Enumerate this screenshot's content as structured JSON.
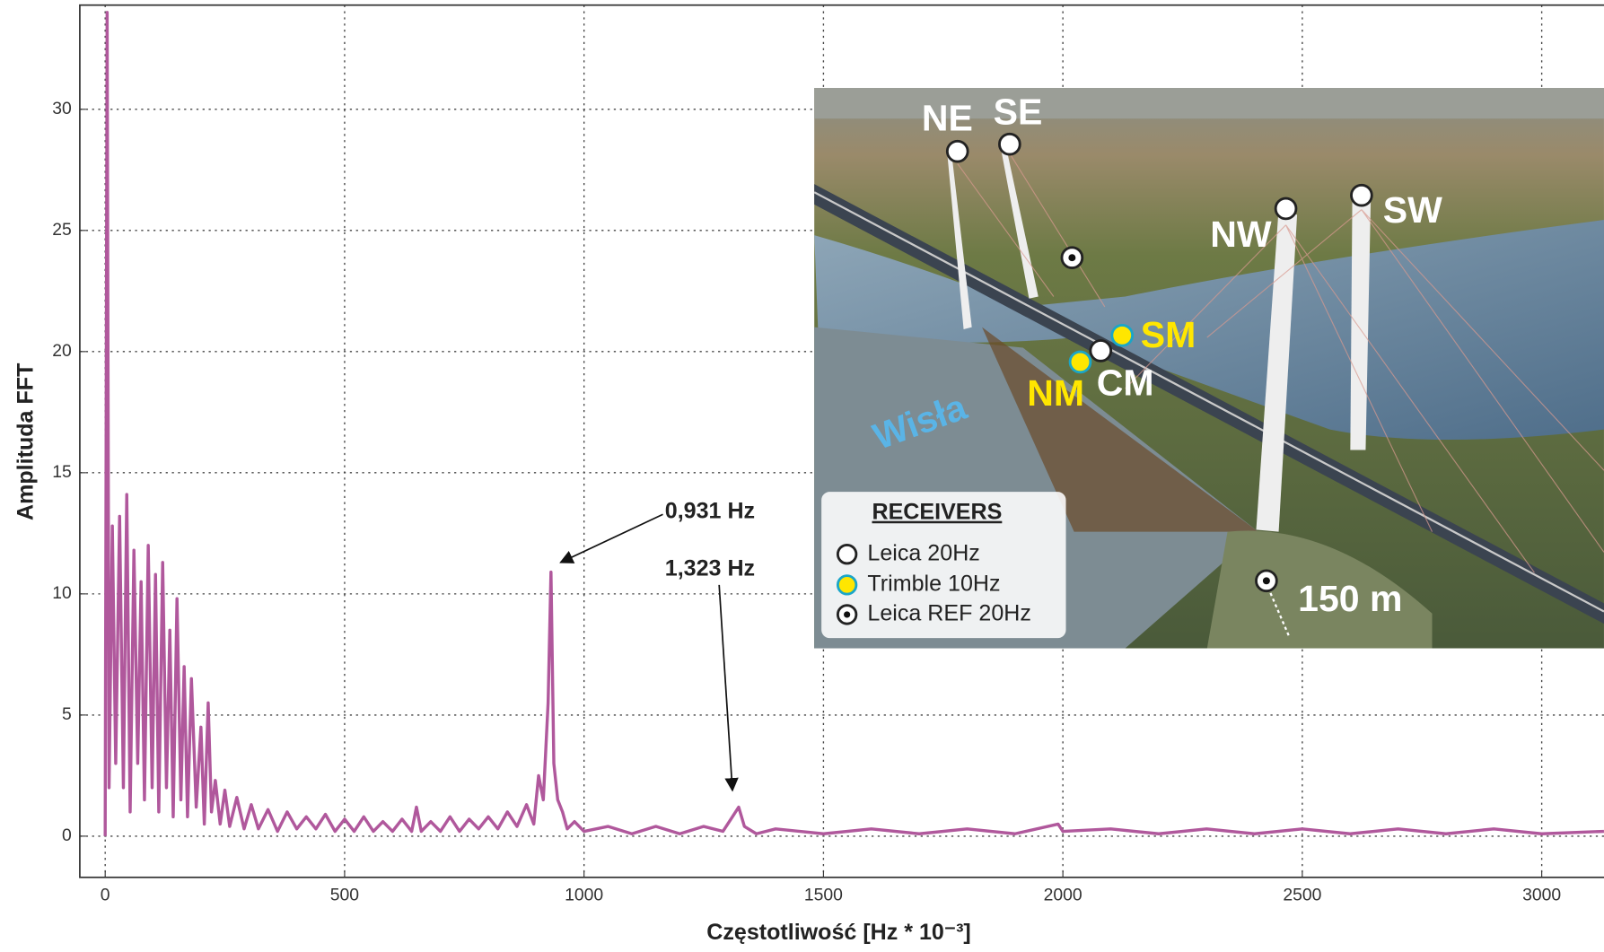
{
  "chart_data": {
    "type": "line",
    "xlabel": "Częstotliwość [Hz * 10⁻³]",
    "ylabel": "Amplituda FFT",
    "x": [
      0,
      4,
      8,
      15,
      22,
      30,
      38,
      45,
      52,
      60,
      68,
      75,
      82,
      90,
      98,
      105,
      112,
      120,
      128,
      135,
      142,
      150,
      158,
      165,
      172,
      180,
      190,
      200,
      207,
      215,
      222,
      230,
      240,
      250,
      260,
      275,
      290,
      305,
      320,
      340,
      360,
      380,
      400,
      420,
      440,
      460,
      480,
      500,
      520,
      540,
      560,
      580,
      600,
      620,
      640,
      650,
      660,
      680,
      700,
      720,
      740,
      760,
      780,
      800,
      820,
      840,
      860,
      880,
      895,
      905,
      915,
      925,
      931,
      937,
      945,
      955,
      965,
      980,
      1000,
      1050,
      1100,
      1150,
      1200,
      1250,
      1290,
      1310,
      1323,
      1335,
      1360,
      1400,
      1500,
      1600,
      1700,
      1800,
      1900,
      1990,
      2000,
      2100,
      2200,
      2300,
      2400,
      2500,
      2600,
      2700,
      2800,
      2900,
      3000,
      3130
    ],
    "series": [
      {
        "color": "#b0589c",
        "values": [
          0,
          34,
          2,
          12.8,
          3,
          13.2,
          2,
          14.1,
          1,
          11.8,
          3,
          10.5,
          1.5,
          12,
          2,
          10.8,
          1,
          11.3,
          2,
          8.5,
          0.8,
          9.8,
          1.5,
          7,
          0.8,
          6.5,
          1.2,
          4.5,
          0.5,
          5.5,
          1,
          2.3,
          0.5,
          1.9,
          0.4,
          1.6,
          0.3,
          1.3,
          0.3,
          1.1,
          0.2,
          1.0,
          0.3,
          0.8,
          0.3,
          0.9,
          0.2,
          0.7,
          0.2,
          0.8,
          0.2,
          0.6,
          0.2,
          0.7,
          0.2,
          1.2,
          0.2,
          0.6,
          0.2,
          0.8,
          0.2,
          0.7,
          0.3,
          0.8,
          0.3,
          1.0,
          0.4,
          1.3,
          0.5,
          2.5,
          1.5,
          5.5,
          10.9,
          3,
          1.5,
          1.0,
          0.3,
          0.6,
          0.2,
          0.4,
          0.1,
          0.4,
          0.1,
          0.4,
          0.2,
          0.8,
          1.2,
          0.4,
          0.1,
          0.3,
          0.1,
          0.3,
          0.1,
          0.3,
          0.1,
          0.5,
          0.2,
          0.3,
          0.1,
          0.3,
          0.1,
          0.3,
          0.1,
          0.3,
          0.1,
          0.3,
          0.1,
          0.2
        ]
      }
    ],
    "xlim": [
      -53,
      3130
    ],
    "ylim": [
      -1.7,
      34.3
    ],
    "xticks": [
      0,
      500,
      1000,
      1500,
      2000,
      2500,
      3000
    ],
    "yticks": [
      0,
      5,
      10,
      15,
      20,
      25,
      30
    ],
    "grid": true,
    "annotations": [
      "0,931 Hz",
      "1,323 Hz"
    ],
    "inset": {
      "labels": [
        "NE",
        "SE",
        "NW",
        "SW",
        "SM",
        "CM",
        "NM",
        "Wisła",
        "150 m"
      ],
      "legend_title": "RECEIVERS",
      "legend": [
        "Leica 20Hz",
        "Trimble 10Hz",
        "Leica REF 20Hz"
      ]
    }
  }
}
